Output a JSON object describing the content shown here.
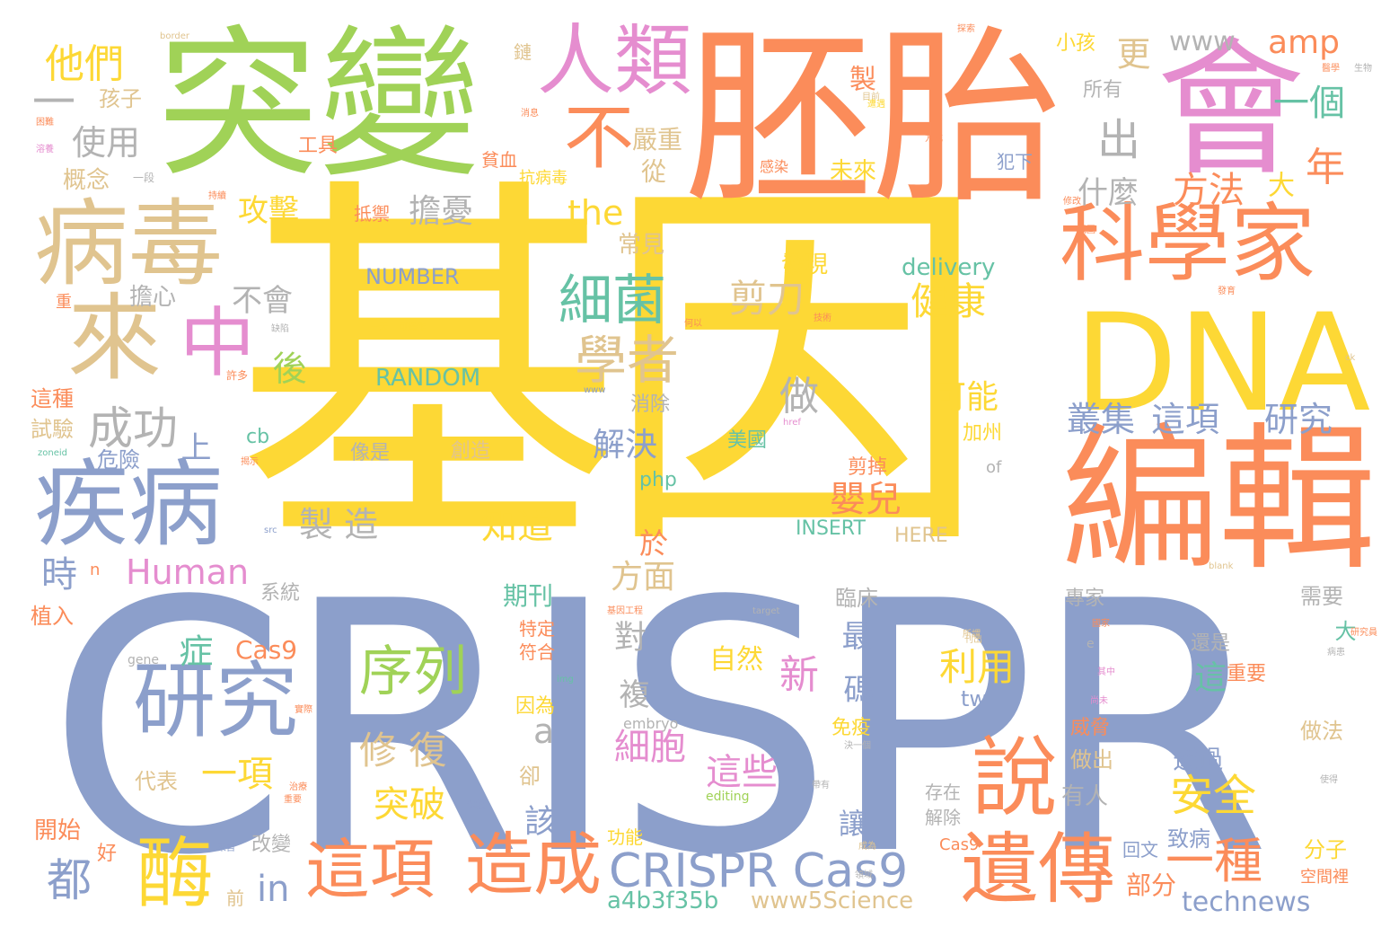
{
  "cloud": {
    "palette": {
      "yellow": "#fdd835",
      "orange": "#fb8c5a",
      "green": "#a0d257",
      "blue": "#8c9fcb",
      "pink": "#e58dcf",
      "tan": "#e0c48f",
      "gray": "#b3b3b3",
      "teal": "#66c2a5"
    },
    "words": {
      "w1": "基因",
      "w2": "CRISPR",
      "w3": "胚胎",
      "w4": "突變",
      "w5": "會",
      "w6": "編輯",
      "w7": "DNA",
      "w8": "病毒",
      "w9": "疾病",
      "w10": "人類",
      "w11": "科學家",
      "w12": "研究",
      "w13": "遺傳",
      "w14": "來",
      "w15": "這項",
      "w16": "造成",
      "w17": "中",
      "w18": "說",
      "w19": "酶",
      "w20": "CRISPR Cas9",
      "w21": "不",
      "w22": "細菌",
      "w23": "序列",
      "w24": "學者",
      "w25": "成功",
      "w26": "一種",
      "w27": "叢集",
      "w28": "這項",
      "w29": "研究",
      "w30": "出",
      "w31": "年",
      "w32": "他們",
      "w33": "使用",
      "w34": "剪刀",
      "w35": "健康",
      "w36": "方法",
      "w37": "一個",
      "w38": "安全",
      "w39": "都",
      "w40": "in",
      "w41": "Human",
      "w42": "細胞",
      "w43": "這些",
      "w44": "修 復",
      "w45": "突破",
      "w46": "利用",
      "w47": "新",
      "w48": "嬰兒",
      "w49": "製 造",
      "w50": "知道",
      "w51": "the",
      "w52": "攻擊",
      "w53": "擔憂",
      "w54": "一項",
      "w55": "Cas9",
      "w56": "解決",
      "w57": "做",
      "w58": "可能",
      "w59": "方面",
      "w60": "後",
      "w61": "時",
      "w62": "上",
      "w63": "不會",
      "w64": "一",
      "w65": "amp",
      "w66": "www",
      "w67": "更",
      "w68": "什麼",
      "w69": "大",
      "w70": "technews",
      "w71": "www5Science",
      "w72": "a4b3f35b",
      "w73": "NUMBER",
      "w74": "delivery",
      "w75": "RANDOM",
      "w76": "INSERT",
      "w77": "HERE",
      "w78": "對",
      "w79": "最",
      "w80": "碼",
      "w81": "複",
      "w82": "a",
      "w83": "症",
      "w84": "自然",
      "w85": "期刊",
      "w86": "孩子",
      "w87": "概念",
      "w88": "嚴重",
      "w89": "從",
      "w90": "未來",
      "w91": "常見",
      "w92": "擔心",
      "w93": "工具",
      "w94": "製",
      "w95": "小孩",
      "w96": "所有",
      "w97": "發現",
      "w98": "這種",
      "w99": "試驗",
      "w100": "危險",
      "w101": "植入",
      "w102": "開始",
      "w103": "前",
      "w104": "改變",
      "w105": "功能",
      "w106": "致病",
      "w107": "部分",
      "w108": "分子",
      "w109": "該",
      "w110": "讓",
      "w111": "有人",
      "w112": "透過",
      "w113": "做出",
      "w114": "威脅",
      "w115": "做法",
      "w116": "需要",
      "w117": "還是",
      "w118": "重要",
      "w119": "這",
      "w120": "tw",
      "w121": "php",
      "w122": "cb",
      "w123": "美國",
      "w124": "加州",
      "w125": "剪掉",
      "w126": "創造",
      "w127": "像是",
      "w128": "消除",
      "w129": "符合",
      "w130": "特定",
      "w131": "因為",
      "w132": "免疫",
      "w133": "系統",
      "w134": "專家",
      "w135": "臨床",
      "w136": "代表",
      "w137": "卻",
      "w138": "解除",
      "w139": "存在",
      "w140": "回文",
      "w141": "好",
      "w142": "Cas9",
      "w143": "於",
      "w144": "犯下",
      "w145": "抗病毒",
      "w146": "貧血",
      "w147": "抵禦",
      "w148": "鏈",
      "w149": "感染",
      "w150": "of",
      "w151": "embryo",
      "w152": "gene",
      "w153": "editing",
      "w154": "n",
      "w155": "border",
      "w156": "target",
      "w157": "img",
      "w158": "src",
      "w159": "href",
      "w160": "blank",
      "w161": "ck",
      "w162": "zoneid",
      "w163": "空間裡",
      "w164": "大",
      "w165": "一段",
      "w166": "重",
      "w167": "許多",
      "w168": "一天",
      "w169": "可操作",
      "w170": "國家",
      "w171": "帶有",
      "w172": "基因工程",
      "w173": "醫學",
      "w174": "揭示",
      "w175": "成為",
      "w176": "所謂",
      "w177": "決一個",
      "w178": "重要",
      "w179": "其中",
      "w180": "尚未",
      "w181": "使得",
      "w182": "生物",
      "w183": "病患",
      "w184": "修改",
      "w185": "實際",
      "w186": "試圖",
      "w187": "研究員",
      "w188": "困難",
      "w189": "持續",
      "w190": "目前",
      "w191": "技術",
      "w192": "治療",
      "w193": "方式",
      "w194": "何以",
      "w195": "缺陷",
      "w196": "發育",
      "w197": "e",
      "w198": "溶養",
      "w199": "消息",
      "w200": "保護",
      "w201": "來自",
      "w202": "領域",
      "w203": "www",
      "w204": "遭遇",
      "w205": "探索",
      "w206": "刊出"
    }
  }
}
